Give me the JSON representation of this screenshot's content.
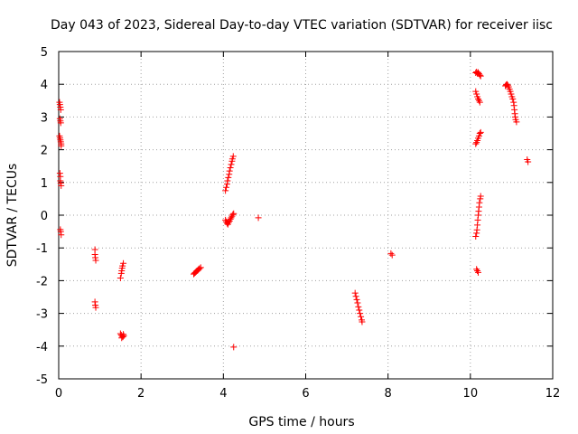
{
  "chart_data": {
    "type": "scatter",
    "title": "Day 043 of 2023, Sidereal Day-to-day VTEC variation (SDTVAR) for receiver iisc",
    "xlabel": "GPS time / hours",
    "ylabel": "SDTVAR / TECUs",
    "xlim": [
      0,
      12
    ],
    "ylim": [
      -5,
      5
    ],
    "xticks": [
      "0",
      "2",
      "4",
      "6",
      "8",
      "10",
      "12"
    ],
    "yticks": [
      "-5",
      "-4",
      "-3",
      "-2",
      "-1",
      "0",
      "1",
      "2",
      "3",
      "4",
      "5"
    ],
    "grid": true,
    "marker": "+",
    "color": "#ff0000",
    "series": [
      {
        "name": "SDTVAR",
        "points": [
          [
            0.02,
            3.45
          ],
          [
            0.03,
            3.38
          ],
          [
            0.04,
            3.3
          ],
          [
            0.05,
            3.22
          ],
          [
            0.03,
            2.95
          ],
          [
            0.04,
            2.88
          ],
          [
            0.05,
            2.82
          ],
          [
            0.02,
            2.42
          ],
          [
            0.03,
            2.36
          ],
          [
            0.04,
            2.3
          ],
          [
            0.05,
            2.24
          ],
          [
            0.06,
            2.18
          ],
          [
            0.06,
            2.12
          ],
          [
            0.03,
            1.28
          ],
          [
            0.04,
            1.18
          ],
          [
            0.04,
            1.05
          ],
          [
            0.05,
            0.98
          ],
          [
            0.06,
            0.9
          ],
          [
            0.04,
            -0.44
          ],
          [
            0.05,
            -0.5
          ],
          [
            0.06,
            -0.6
          ],
          [
            0.88,
            -1.05
          ],
          [
            0.88,
            -1.2
          ],
          [
            0.89,
            -1.3
          ],
          [
            0.9,
            -1.38
          ],
          [
            0.88,
            -2.65
          ],
          [
            0.89,
            -2.75
          ],
          [
            0.9,
            -2.82
          ],
          [
            1.5,
            -1.92
          ],
          [
            1.52,
            -1.78
          ],
          [
            1.53,
            -1.7
          ],
          [
            1.54,
            -1.62
          ],
          [
            1.55,
            -1.55
          ],
          [
            1.57,
            -1.47
          ],
          [
            1.5,
            -3.62
          ],
          [
            1.52,
            -3.66
          ],
          [
            1.54,
            -3.7
          ],
          [
            1.56,
            -3.72
          ],
          [
            1.58,
            -3.68
          ],
          [
            1.53,
            -3.75
          ],
          [
            1.57,
            -3.64
          ],
          [
            3.28,
            -1.8
          ],
          [
            3.3,
            -1.77
          ],
          [
            3.32,
            -1.75
          ],
          [
            3.34,
            -1.72
          ],
          [
            3.36,
            -1.7
          ],
          [
            3.38,
            -1.68
          ],
          [
            3.4,
            -1.65
          ],
          [
            3.42,
            -1.63
          ],
          [
            3.45,
            -1.6
          ],
          [
            4.05,
            0.75
          ],
          [
            4.07,
            0.85
          ],
          [
            4.09,
            0.95
          ],
          [
            4.1,
            1.05
          ],
          [
            4.12,
            1.15
          ],
          [
            4.14,
            1.25
          ],
          [
            4.15,
            1.35
          ],
          [
            4.17,
            1.45
          ],
          [
            4.19,
            1.55
          ],
          [
            4.21,
            1.65
          ],
          [
            4.22,
            1.72
          ],
          [
            4.24,
            1.8
          ],
          [
            4.05,
            -0.15
          ],
          [
            4.07,
            -0.2
          ],
          [
            4.09,
            -0.25
          ],
          [
            4.11,
            -0.28
          ],
          [
            4.13,
            -0.22
          ],
          [
            4.15,
            -0.18
          ],
          [
            4.17,
            -0.12
          ],
          [
            4.19,
            -0.08
          ],
          [
            4.21,
            -0.03
          ],
          [
            4.23,
            0.02
          ],
          [
            4.25,
            0.05
          ],
          [
            4.25,
            -4.03
          ],
          [
            4.85,
            -0.08
          ],
          [
            7.2,
            -2.38
          ],
          [
            7.22,
            -2.48
          ],
          [
            7.24,
            -2.58
          ],
          [
            7.26,
            -2.68
          ],
          [
            7.28,
            -2.8
          ],
          [
            7.3,
            -2.9
          ],
          [
            7.32,
            -3.0
          ],
          [
            7.34,
            -3.1
          ],
          [
            7.36,
            -3.2
          ],
          [
            7.37,
            -3.26
          ],
          [
            8.07,
            -1.17
          ],
          [
            8.1,
            -1.22
          ],
          [
            10.13,
            4.35
          ],
          [
            10.15,
            4.38
          ],
          [
            10.17,
            4.33
          ],
          [
            10.19,
            4.36
          ],
          [
            10.21,
            4.32
          ],
          [
            10.23,
            4.28
          ],
          [
            10.25,
            4.25
          ],
          [
            10.13,
            3.78
          ],
          [
            10.15,
            3.7
          ],
          [
            10.17,
            3.62
          ],
          [
            10.19,
            3.55
          ],
          [
            10.21,
            3.5
          ],
          [
            10.23,
            3.45
          ],
          [
            10.13,
            2.18
          ],
          [
            10.15,
            2.22
          ],
          [
            10.17,
            2.28
          ],
          [
            10.19,
            2.35
          ],
          [
            10.21,
            2.42
          ],
          [
            10.23,
            2.5
          ],
          [
            10.25,
            2.53
          ],
          [
            10.13,
            -0.65
          ],
          [
            10.15,
            -0.55
          ],
          [
            10.16,
            -0.45
          ],
          [
            10.17,
            -0.3
          ],
          [
            10.18,
            -0.15
          ],
          [
            10.19,
            0.0
          ],
          [
            10.2,
            0.12
          ],
          [
            10.21,
            0.25
          ],
          [
            10.22,
            0.38
          ],
          [
            10.24,
            0.5
          ],
          [
            10.25,
            0.58
          ],
          [
            10.15,
            -1.65
          ],
          [
            10.17,
            -1.7
          ],
          [
            10.19,
            -1.75
          ],
          [
            10.85,
            3.95
          ],
          [
            10.87,
            3.98
          ],
          [
            10.89,
            4.0
          ],
          [
            10.91,
            3.97
          ],
          [
            10.93,
            3.92
          ],
          [
            10.95,
            3.85
          ],
          [
            10.97,
            3.78
          ],
          [
            10.99,
            3.7
          ],
          [
            11.01,
            3.62
          ],
          [
            11.03,
            3.55
          ],
          [
            11.05,
            3.45
          ],
          [
            11.06,
            3.35
          ],
          [
            11.07,
            3.22
          ],
          [
            11.08,
            3.1
          ],
          [
            11.09,
            3.0
          ],
          [
            11.1,
            2.92
          ],
          [
            11.12,
            2.85
          ],
          [
            11.38,
            1.7
          ],
          [
            11.4,
            1.63
          ]
        ]
      }
    ]
  }
}
